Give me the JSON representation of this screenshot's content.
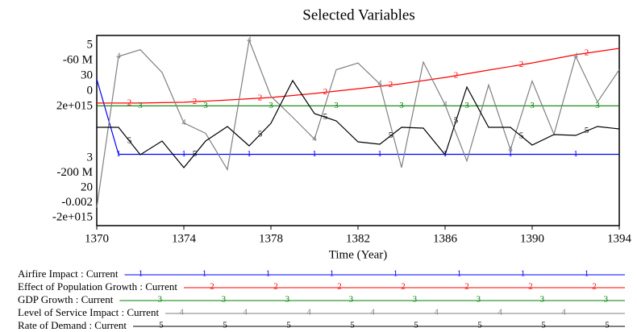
{
  "chart_data": {
    "type": "line",
    "title": "Selected Variables",
    "xlabel": "Time (Year)",
    "xlim": [
      1370,
      1394
    ],
    "xticks": [
      1370,
      1374,
      1378,
      1382,
      1386,
      1390,
      1394
    ],
    "axes": [
      {
        "ylim": [
          3,
          5
        ],
        "yticks": [
          3,
          5
        ]
      },
      {
        "ylim": [
          -200000000,
          -60000000
        ],
        "yticks": [
          {
            "value": -200000000,
            "label": "-200 M"
          },
          {
            "value": -60000000,
            "label": "-60 M"
          }
        ]
      },
      {
        "ylim": [
          20,
          30
        ],
        "yticks": [
          20,
          30
        ]
      },
      {
        "ylim": [
          -0.002,
          0
        ],
        "yticks": [
          -0.002,
          0
        ]
      },
      {
        "ylim": [
          -2000000000000000,
          2000000000000000
        ],
        "yticks": [
          {
            "value": -2000000000000000,
            "label": "-2e+015"
          },
          {
            "value": 2000000000000000,
            "label": "2e+015"
          }
        ]
      }
    ],
    "series": [
      {
        "name": "Airfire Impact : Current",
        "marker": "1",
        "color": "#0000ff",
        "axis": 0,
        "x": [
          1370,
          1371,
          1394
        ],
        "values": [
          4.54,
          3.75,
          3.75
        ]
      },
      {
        "name": "Effect of Population Growth : Current",
        "marker": "2",
        "color": "#ff0000",
        "axis": 1,
        "x": [
          1370,
          1372,
          1374,
          1376,
          1378,
          1380,
          1382,
          1384,
          1386,
          1388,
          1390,
          1392,
          1394
        ],
        "values": [
          -109800000,
          -109800000,
          -109200000,
          -107500000,
          -105700000,
          -102700000,
          -99200000,
          -95600000,
          -90900000,
          -85500000,
          -80200000,
          -74200000,
          -69500000
        ]
      },
      {
        "name": "GDP Growth : Current",
        "marker": "3",
        "color": "#008000",
        "axis": 2,
        "x": [
          1370,
          1394
        ],
        "values": [
          26.3,
          26.3
        ]
      },
      {
        "name": "Level of Service Impact : Current",
        "marker": "4",
        "color": "#808080",
        "axis": 3,
        "x": [
          1370,
          1371,
          1372,
          1373,
          1374,
          1375,
          1376,
          1377,
          1378,
          1379,
          1380,
          1381,
          1382,
          1383,
          1384,
          1385,
          1386,
          1387,
          1388,
          1389,
          1390,
          1391,
          1392,
          1393,
          1394
        ],
        "values": [
          -0.00181,
          -0.00022,
          -0.00015,
          -0.00039,
          -0.00092,
          -0.00103,
          -0.00141,
          -5e-05,
          -0.00064,
          -0.00086,
          -0.00109,
          -0.00036,
          -0.00029,
          -0.00051,
          -0.00139,
          -0.00028,
          -0.00073,
          -0.00132,
          -0.00052,
          -0.0012,
          -0.00048,
          -0.00104,
          -0.00022,
          -0.0007,
          -0.00036
        ]
      },
      {
        "name": "Rate of Demand : Current",
        "marker": "5",
        "color": "#000000",
        "axis": 4,
        "x": [
          1370,
          1371,
          1372,
          1373,
          1374,
          1375,
          1376,
          1377,
          1378,
          1379,
          1380,
          1381,
          1382,
          1383,
          1384,
          1385,
          1386,
          1387,
          1388,
          1389,
          1390,
          1391,
          1392,
          1393,
          1394
        ],
        "values": [
          68000000000000,
          68000000000000,
          -508000000000000,
          -220000000000000,
          -780000000000000,
          -220000000000000,
          85000000000000,
          -322000000000000,
          153000000000000,
          1051000000000000,
          356000000000000,
          203000000000000,
          -237000000000000,
          -288000000000000,
          68000000000000,
          51000000000000,
          -508000000000000,
          915000000000000,
          68000000000000,
          68000000000000,
          -305000000000000,
          -85000000000000,
          -102000000000000,
          85000000000000,
          34000000000000
        ]
      }
    ]
  }
}
